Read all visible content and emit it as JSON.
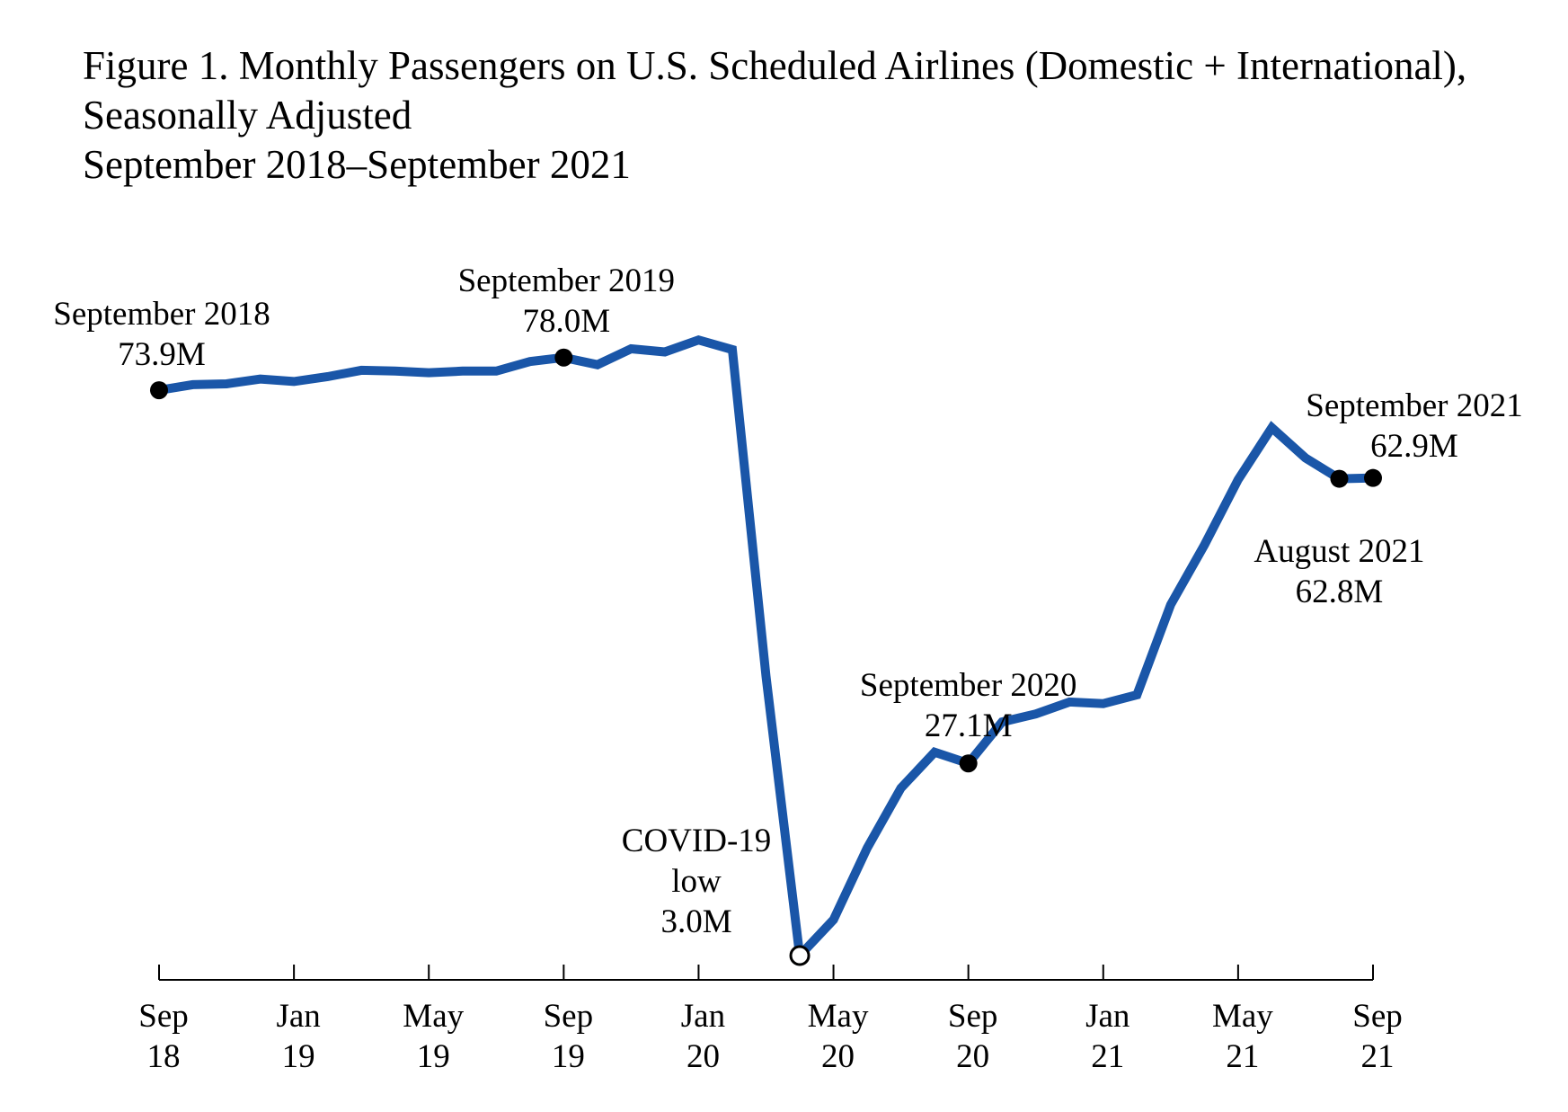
{
  "title": {
    "line1": "Figure 1. Monthly Passengers on U.S. Scheduled Airlines (Domestic + International),",
    "line2": "Seasonally Adjusted",
    "line3": "September 2018–September 2021"
  },
  "chart_data": {
    "type": "line",
    "title": "Figure 1. Monthly Passengers on U.S. Scheduled Airlines (Domestic + International), Seasonally Adjusted",
    "subtitle": "September 2018–September 2021",
    "xlabel": "",
    "ylabel": "",
    "grid": false,
    "legend": "none",
    "line_color": "#1a56a8",
    "y_unit": "millions of passengers",
    "ylim": [
      3.0,
      80.0
    ],
    "x_ticks": [
      {
        "index": 0,
        "line1": "Sep",
        "line2": "18"
      },
      {
        "index": 4,
        "line1": "Jan",
        "line2": "19"
      },
      {
        "index": 8,
        "line1": "May",
        "line2": "19"
      },
      {
        "index": 12,
        "line1": "Sep",
        "line2": "19"
      },
      {
        "index": 16,
        "line1": "Jan",
        "line2": "20"
      },
      {
        "index": 20,
        "line1": "May",
        "line2": "20"
      },
      {
        "index": 24,
        "line1": "Sep",
        "line2": "20"
      },
      {
        "index": 28,
        "line1": "Jan",
        "line2": "21"
      },
      {
        "index": 32,
        "line1": "May",
        "line2": "21"
      },
      {
        "index": 36,
        "line1": "Sep",
        "line2": "21"
      }
    ],
    "series": [
      {
        "x": [
          "2018-09",
          "2018-10",
          "2018-11",
          "2018-12",
          "2019-01",
          "2019-02",
          "2019-03",
          "2019-04",
          "2019-05",
          "2019-06",
          "2019-07",
          "2019-08",
          "2019-09",
          "2019-10",
          "2019-11",
          "2019-12",
          "2020-01",
          "2020-02",
          "2020-03",
          "2020-04",
          "2020-05",
          "2020-06",
          "2020-07",
          "2020-08",
          "2020-09",
          "2020-10",
          "2020-11",
          "2020-12",
          "2021-01",
          "2021-02",
          "2021-03",
          "2021-04",
          "2021-05",
          "2021-06",
          "2021-07",
          "2021-08",
          "2021-09"
        ],
        "values": [
          73.9,
          74.6,
          74.7,
          75.3,
          75.0,
          75.6,
          76.4,
          76.3,
          76.1,
          76.3,
          76.3,
          77.5,
          78.0,
          77.1,
          79.1,
          78.7,
          80.2,
          79.0,
          38.0,
          3.0,
          7.5,
          16.5,
          24.0,
          28.5,
          27.1,
          32.3,
          33.3,
          34.8,
          34.6,
          35.7,
          47.0,
          54.5,
          62.7,
          69.2,
          65.4,
          62.8,
          62.9
        ]
      }
    ],
    "annotations": [
      {
        "index": 0,
        "lines": [
          "September 2018",
          "73.9M"
        ],
        "marker": "filled"
      },
      {
        "index": 12,
        "lines": [
          "September 2019",
          "78.0M"
        ],
        "marker": "filled"
      },
      {
        "index": 19,
        "lines": [
          "COVID-19",
          "low",
          "3.0M"
        ],
        "marker": "open"
      },
      {
        "index": 24,
        "lines": [
          "September 2020",
          "27.1M"
        ],
        "marker": "filled"
      },
      {
        "index": 35,
        "lines": [
          "August 2021",
          "62.8M"
        ],
        "marker": "filled"
      },
      {
        "index": 36,
        "lines": [
          "September 2021",
          "62.9M"
        ],
        "marker": "filled"
      }
    ]
  }
}
